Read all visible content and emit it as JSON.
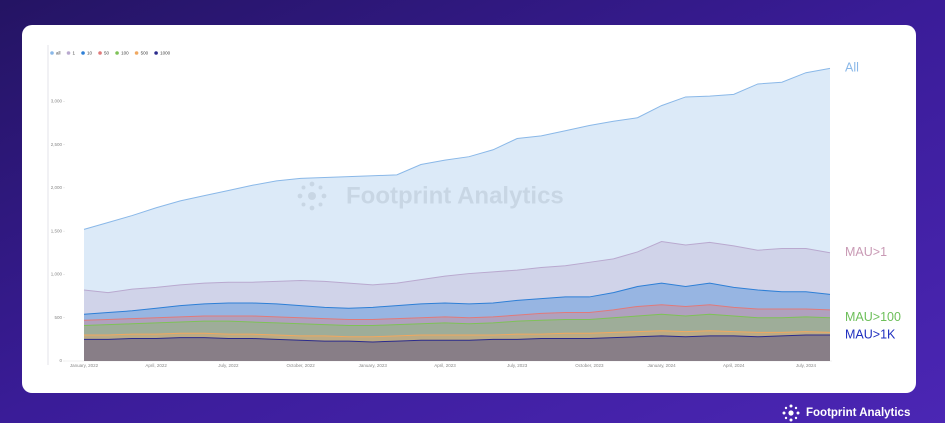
{
  "chart_data": {
    "type": "area",
    "watermark": "Footprint Analytics",
    "legend": "top-left",
    "grid": false,
    "categories": [
      "January, 2022",
      null,
      null,
      "April, 2022",
      null,
      null,
      "July, 2022",
      null,
      null,
      "October, 2022",
      null,
      null,
      "January, 2023",
      null,
      null,
      "April, 2023",
      null,
      null,
      "July, 2023",
      null,
      null,
      "October, 2023",
      null,
      null,
      "January, 2024",
      null,
      null,
      "April, 2024",
      null,
      null,
      "July, 2024",
      null
    ],
    "ylim": [
      0,
      3500
    ],
    "yticks": [
      0,
      500,
      {
        "value": 1000,
        "label": "1,000"
      },
      {
        "value": 1500,
        "label": "1,500"
      },
      {
        "value": 2000,
        "label": "2,000"
      },
      {
        "value": 2500,
        "label": "2,500"
      },
      {
        "value": 3000,
        "label": "3,000"
      }
    ],
    "series": [
      {
        "name": "all",
        "color": "#8ab8e8",
        "values": [
          1520,
          1600,
          1680,
          1770,
          1850,
          1910,
          1970,
          2030,
          2080,
          2110,
          2120,
          2130,
          2140,
          2150,
          2270,
          2320,
          2360,
          2440,
          2570,
          2600,
          2660,
          2720,
          2770,
          2810,
          2950,
          3050,
          3060,
          3080,
          3200,
          3220,
          3330,
          3380
        ]
      },
      {
        "name": "1",
        "color": "#b9a9cf",
        "values": [
          820,
          790,
          830,
          850,
          880,
          900,
          910,
          910,
          920,
          930,
          920,
          900,
          880,
          900,
          940,
          980,
          1010,
          1030,
          1050,
          1080,
          1100,
          1140,
          1180,
          1260,
          1380,
          1340,
          1370,
          1330,
          1280,
          1300,
          1300,
          1250
        ]
      },
      {
        "name": "10",
        "color": "#2e7fd6",
        "values": [
          540,
          560,
          580,
          610,
          640,
          660,
          670,
          670,
          660,
          640,
          620,
          610,
          620,
          640,
          660,
          670,
          660,
          670,
          700,
          720,
          740,
          740,
          790,
          860,
          900,
          860,
          900,
          850,
          820,
          800,
          800,
          770
        ]
      },
      {
        "name": "50",
        "color": "#e07a7a",
        "values": [
          470,
          480,
          490,
          500,
          510,
          520,
          520,
          520,
          510,
          500,
          490,
          480,
          480,
          490,
          500,
          510,
          500,
          510,
          530,
          550,
          560,
          560,
          590,
          630,
          650,
          630,
          650,
          620,
          600,
          600,
          600,
          590
        ]
      },
      {
        "name": "100",
        "color": "#7ec257",
        "values": [
          410,
          420,
          430,
          440,
          450,
          460,
          460,
          450,
          440,
          430,
          420,
          410,
          410,
          420,
          430,
          440,
          430,
          440,
          460,
          470,
          480,
          480,
          500,
          520,
          540,
          520,
          540,
          520,
          500,
          500,
          510,
          500
        ]
      },
      {
        "name": "500",
        "color": "#f0a860",
        "values": [
          300,
          300,
          310,
          310,
          320,
          320,
          310,
          310,
          300,
          290,
          290,
          280,
          280,
          290,
          300,
          300,
          300,
          300,
          310,
          310,
          320,
          320,
          330,
          340,
          350,
          340,
          350,
          340,
          330,
          330,
          340,
          330
        ]
      },
      {
        "name": "1000",
        "color": "#2b2b8c",
        "values": [
          250,
          250,
          260,
          260,
          270,
          270,
          260,
          260,
          250,
          240,
          230,
          230,
          220,
          230,
          240,
          240,
          240,
          250,
          250,
          260,
          260,
          260,
          270,
          280,
          290,
          280,
          290,
          290,
          280,
          290,
          300,
          300
        ]
      }
    ],
    "annotations": [
      {
        "text": "All",
        "color": "#8ab8e8",
        "series": 0
      },
      {
        "text": "MAU>1",
        "color": "#c99ab5",
        "series": 1
      },
      {
        "text": "MAU>100",
        "color": "#6dbf5a",
        "series": 4
      },
      {
        "text": "MAU>1K",
        "color": "#1f2fbf",
        "series": 6
      }
    ]
  },
  "brand": "Footprint Analytics"
}
